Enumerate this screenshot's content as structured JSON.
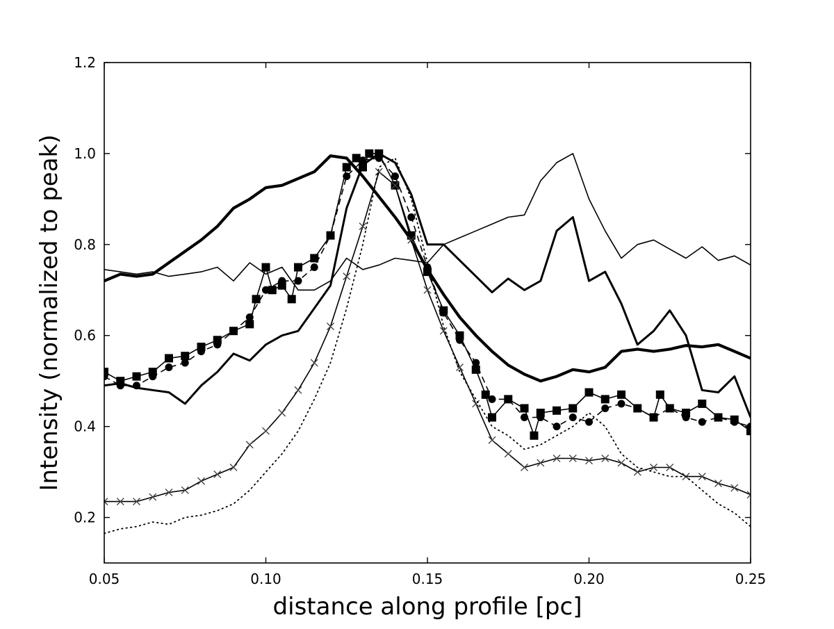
{
  "chart_data": {
    "type": "line",
    "xlabel": "distance along profile [pc]",
    "ylabel": "Intensity (normalized to peak)",
    "xlim": [
      0.05,
      0.25
    ],
    "ylim": [
      0.1,
      1.2
    ],
    "xticks": [
      "0.05",
      "0.10",
      "0.15",
      "0.20",
      "0.25"
    ],
    "yticks": [
      "0.2",
      "0.4",
      "0.6",
      "0.8",
      "1.0",
      "1.2"
    ],
    "grid": false,
    "legend": "none",
    "series": [
      {
        "style": "solid-thin",
        "x": [
          0.05,
          0.06,
          0.065,
          0.07,
          0.075,
          0.08,
          0.085,
          0.09,
          0.095,
          0.1,
          0.105,
          0.11,
          0.115,
          0.12,
          0.125,
          0.13,
          0.135,
          0.14,
          0.145,
          0.15,
          0.155,
          0.16,
          0.165,
          0.17,
          0.175,
          0.18,
          0.185,
          0.19,
          0.195,
          0.2,
          0.205,
          0.21,
          0.215,
          0.22,
          0.225,
          0.23,
          0.235,
          0.24,
          0.245,
          0.25
        ],
        "y": [
          0.745,
          0.735,
          0.74,
          0.73,
          0.735,
          0.74,
          0.75,
          0.72,
          0.76,
          0.735,
          0.75,
          0.7,
          0.7,
          0.72,
          0.77,
          0.745,
          0.755,
          0.77,
          0.765,
          0.76,
          0.8,
          0.815,
          0.83,
          0.845,
          0.86,
          0.865,
          0.94,
          0.98,
          1.0,
          0.9,
          0.83,
          0.77,
          0.8,
          0.81,
          0.79,
          0.77,
          0.795,
          0.765,
          0.775,
          0.755
        ]
      },
      {
        "style": "solid-thick",
        "x": [
          0.05,
          0.055,
          0.06,
          0.065,
          0.07,
          0.075,
          0.08,
          0.085,
          0.09,
          0.095,
          0.1,
          0.105,
          0.11,
          0.115,
          0.12,
          0.125,
          0.13,
          0.135,
          0.14,
          0.145,
          0.15,
          0.155,
          0.16,
          0.165,
          0.17,
          0.175,
          0.18,
          0.185,
          0.19,
          0.195,
          0.2,
          0.205,
          0.21,
          0.215,
          0.22,
          0.225,
          0.23,
          0.235,
          0.24,
          0.245,
          0.25
        ],
        "y": [
          0.72,
          0.735,
          0.73,
          0.735,
          0.76,
          0.785,
          0.81,
          0.84,
          0.88,
          0.9,
          0.925,
          0.93,
          0.945,
          0.96,
          0.995,
          0.99,
          0.95,
          0.905,
          0.86,
          0.81,
          0.745,
          0.69,
          0.64,
          0.6,
          0.565,
          0.535,
          0.515,
          0.5,
          0.51,
          0.525,
          0.52,
          0.53,
          0.565,
          0.57,
          0.565,
          0.57,
          0.578,
          0.575,
          0.58,
          0.565,
          0.55
        ]
      },
      {
        "style": "solid-medium",
        "x": [
          0.05,
          0.055,
          0.06,
          0.065,
          0.07,
          0.075,
          0.08,
          0.085,
          0.09,
          0.095,
          0.1,
          0.105,
          0.11,
          0.115,
          0.12,
          0.125,
          0.13,
          0.135,
          0.14,
          0.145,
          0.15,
          0.155,
          0.16,
          0.165,
          0.17,
          0.175,
          0.18,
          0.185,
          0.19,
          0.195,
          0.2,
          0.205,
          0.21,
          0.215,
          0.22,
          0.225,
          0.23,
          0.235,
          0.24,
          0.245,
          0.25
        ],
        "y": [
          0.49,
          0.495,
          0.485,
          0.48,
          0.475,
          0.45,
          0.49,
          0.52,
          0.56,
          0.545,
          0.58,
          0.6,
          0.61,
          0.66,
          0.71,
          0.88,
          0.975,
          1.0,
          0.98,
          0.91,
          0.8,
          0.8,
          0.765,
          0.73,
          0.695,
          0.725,
          0.7,
          0.72,
          0.83,
          0.86,
          0.72,
          0.74,
          0.67,
          0.58,
          0.61,
          0.655,
          0.6,
          0.48,
          0.475,
          0.51,
          0.42
        ]
      },
      {
        "style": "solid-square-markers",
        "x": [
          0.05,
          0.055,
          0.06,
          0.065,
          0.07,
          0.075,
          0.08,
          0.085,
          0.09,
          0.095,
          0.097,
          0.1,
          0.102,
          0.105,
          0.108,
          0.11,
          0.115,
          0.12,
          0.125,
          0.128,
          0.13,
          0.132,
          0.135,
          0.14,
          0.145,
          0.15,
          0.155,
          0.16,
          0.165,
          0.168,
          0.17,
          0.175,
          0.18,
          0.183,
          0.185,
          0.19,
          0.195,
          0.2,
          0.205,
          0.21,
          0.215,
          0.22,
          0.222,
          0.225,
          0.23,
          0.235,
          0.24,
          0.245,
          0.25
        ],
        "y": [
          0.52,
          0.5,
          0.51,
          0.52,
          0.55,
          0.555,
          0.575,
          0.59,
          0.61,
          0.625,
          0.68,
          0.75,
          0.7,
          0.71,
          0.68,
          0.75,
          0.77,
          0.82,
          0.97,
          0.99,
          0.97,
          1.0,
          1.0,
          0.93,
          0.82,
          0.74,
          0.655,
          0.6,
          0.525,
          0.47,
          0.42,
          0.46,
          0.44,
          0.38,
          0.43,
          0.435,
          0.44,
          0.475,
          0.46,
          0.47,
          0.44,
          0.42,
          0.47,
          0.44,
          0.43,
          0.45,
          0.42,
          0.415,
          0.39
        ]
      },
      {
        "style": "dashed-circle-markers",
        "x": [
          0.05,
          0.055,
          0.06,
          0.065,
          0.07,
          0.075,
          0.08,
          0.085,
          0.09,
          0.095,
          0.1,
          0.105,
          0.11,
          0.115,
          0.12,
          0.125,
          0.13,
          0.135,
          0.14,
          0.145,
          0.15,
          0.155,
          0.16,
          0.165,
          0.17,
          0.175,
          0.18,
          0.185,
          0.19,
          0.195,
          0.2,
          0.205,
          0.21,
          0.215,
          0.22,
          0.225,
          0.23,
          0.235,
          0.24,
          0.245,
          0.25
        ],
        "y": [
          0.51,
          0.49,
          0.49,
          0.51,
          0.53,
          0.54,
          0.565,
          0.58,
          0.61,
          0.64,
          0.7,
          0.72,
          0.72,
          0.75,
          0.82,
          0.95,
          0.985,
          0.99,
          0.95,
          0.86,
          0.75,
          0.65,
          0.59,
          0.54,
          0.46,
          0.46,
          0.42,
          0.42,
          0.4,
          0.42,
          0.41,
          0.44,
          0.45,
          0.44,
          0.42,
          0.44,
          0.42,
          0.41,
          0.42,
          0.41,
          0.4
        ]
      },
      {
        "style": "solid-x-markers",
        "x": [
          0.05,
          0.055,
          0.06,
          0.065,
          0.07,
          0.075,
          0.08,
          0.085,
          0.09,
          0.095,
          0.1,
          0.105,
          0.11,
          0.115,
          0.12,
          0.125,
          0.13,
          0.135,
          0.14,
          0.145,
          0.15,
          0.155,
          0.16,
          0.165,
          0.17,
          0.175,
          0.18,
          0.185,
          0.19,
          0.195,
          0.2,
          0.205,
          0.21,
          0.215,
          0.22,
          0.225,
          0.23,
          0.235,
          0.24,
          0.245,
          0.25
        ],
        "y": [
          0.235,
          0.235,
          0.235,
          0.245,
          0.255,
          0.26,
          0.28,
          0.295,
          0.31,
          0.36,
          0.39,
          0.43,
          0.48,
          0.54,
          0.62,
          0.73,
          0.84,
          0.96,
          0.93,
          0.81,
          0.7,
          0.61,
          0.53,
          0.45,
          0.37,
          0.34,
          0.31,
          0.32,
          0.33,
          0.33,
          0.325,
          0.33,
          0.32,
          0.3,
          0.31,
          0.31,
          0.29,
          0.29,
          0.275,
          0.265,
          0.25
        ]
      },
      {
        "style": "dotted",
        "x": [
          0.05,
          0.055,
          0.06,
          0.065,
          0.07,
          0.075,
          0.08,
          0.085,
          0.09,
          0.095,
          0.1,
          0.105,
          0.11,
          0.115,
          0.12,
          0.125,
          0.13,
          0.135,
          0.14,
          0.145,
          0.15,
          0.155,
          0.16,
          0.165,
          0.17,
          0.175,
          0.18,
          0.185,
          0.19,
          0.195,
          0.2,
          0.205,
          0.21,
          0.215,
          0.22,
          0.225,
          0.23,
          0.235,
          0.24,
          0.245,
          0.25
        ],
        "y": [
          0.165,
          0.175,
          0.18,
          0.19,
          0.185,
          0.2,
          0.205,
          0.215,
          0.23,
          0.26,
          0.3,
          0.34,
          0.39,
          0.46,
          0.54,
          0.66,
          0.8,
          0.97,
          0.99,
          0.9,
          0.76,
          0.62,
          0.52,
          0.46,
          0.4,
          0.38,
          0.35,
          0.36,
          0.38,
          0.4,
          0.43,
          0.4,
          0.34,
          0.31,
          0.3,
          0.29,
          0.29,
          0.26,
          0.23,
          0.21,
          0.18
        ]
      }
    ]
  }
}
